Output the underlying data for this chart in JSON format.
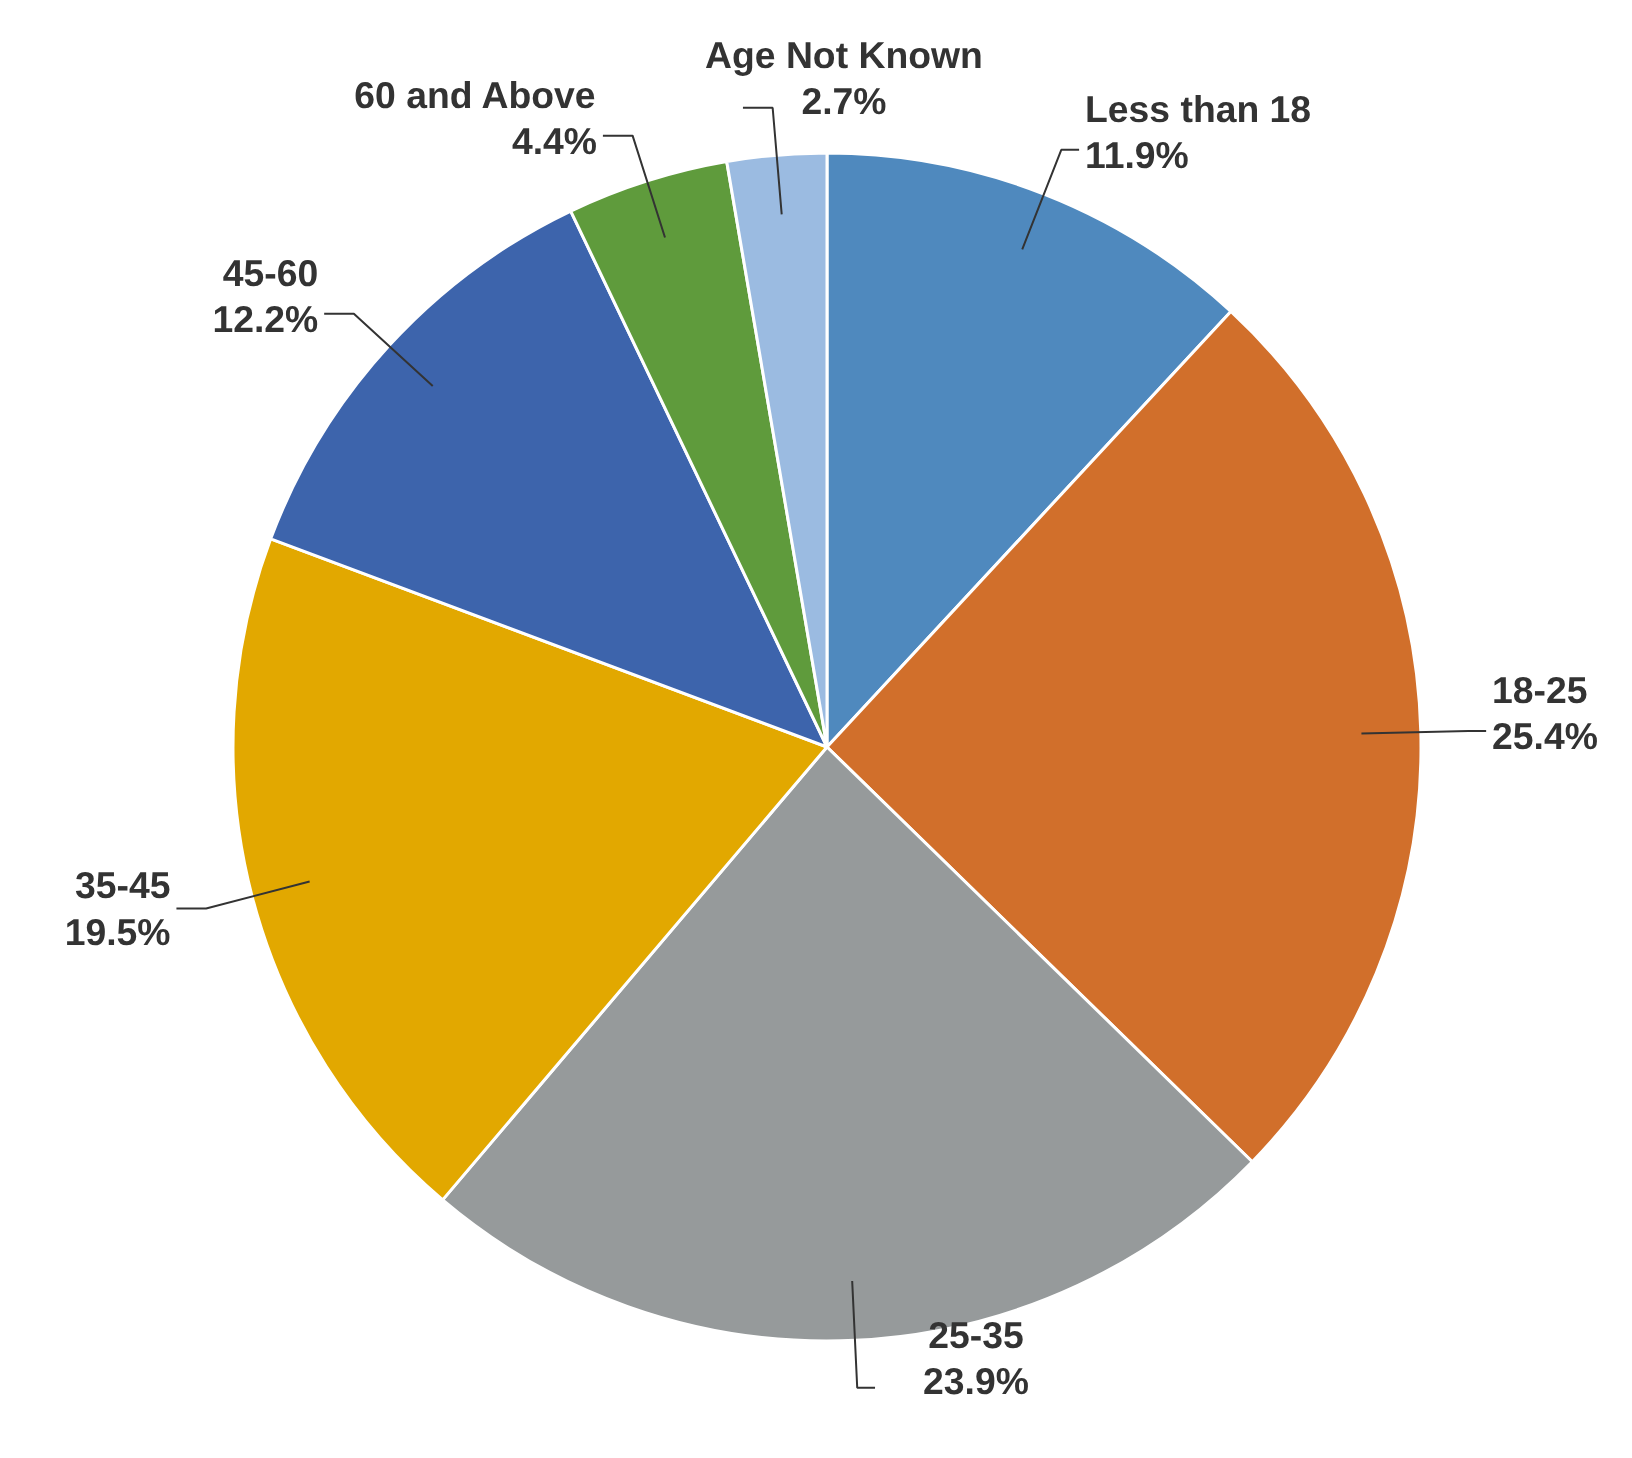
{
  "chart_data": {
    "type": "pie",
    "categories": [
      "Less than 18",
      "18-25",
      "25-35",
      "35-45",
      "45-60",
      "60 and Above",
      "Age Not Known"
    ],
    "values": [
      11.9,
      25.4,
      23.9,
      19.5,
      12.2,
      4.4,
      2.7
    ],
    "value_labels": [
      "11.9%",
      "25.4%",
      "23.9%",
      "19.5%",
      "12.2%",
      "4.4%",
      "2.7%"
    ],
    "colors": [
      "#4f89be",
      "#d16f2b",
      "#969a9b",
      "#e2a800",
      "#3d64ac",
      "#5f9b3c",
      "#9bbbe1"
    ]
  }
}
